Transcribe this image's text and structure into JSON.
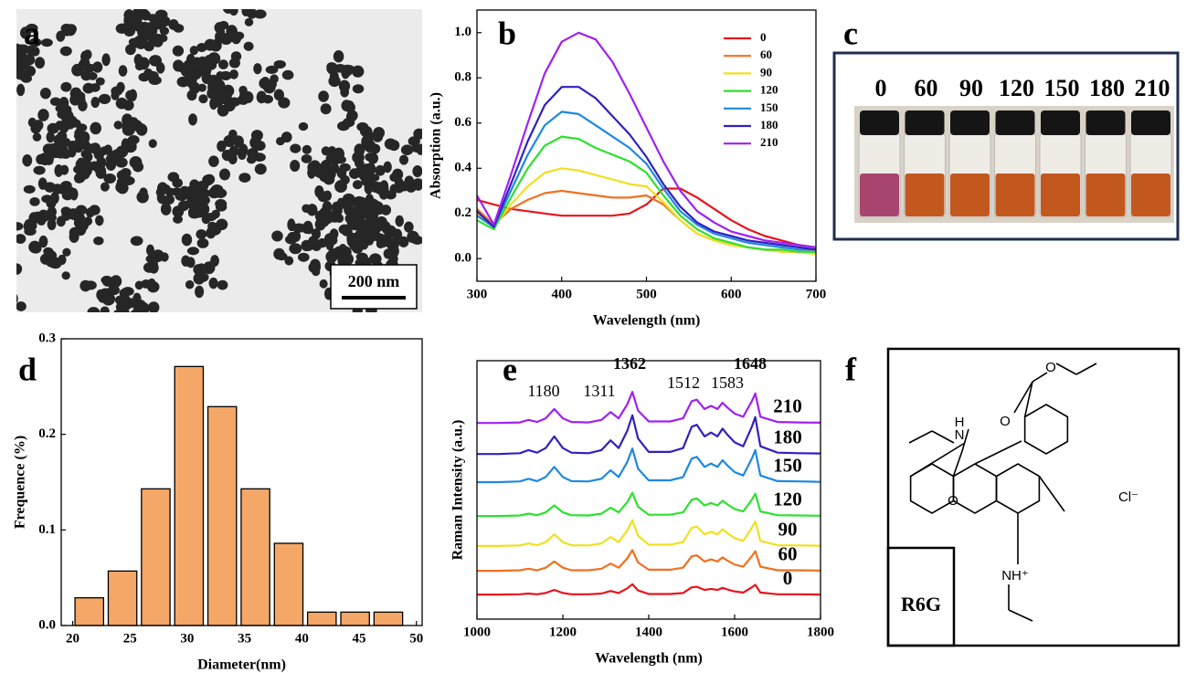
{
  "panel_labels": [
    "a",
    "b",
    "c",
    "d",
    "e",
    "f"
  ],
  "panel_a": {
    "scale_bar": "200 nm"
  },
  "panel_c": {
    "vial_labels": [
      "0",
      "60",
      "90",
      "120",
      "150",
      "180",
      "210"
    ]
  },
  "panel_f": {
    "atoms": [
      "H",
      "N",
      "O",
      "O",
      "O",
      "Cl⁻",
      "NH⁺"
    ],
    "compound": "R6G"
  },
  "chart_data": [
    {
      "type": "line",
      "xlabel": "Wavelength (nm)",
      "ylabel": "Absorption (a.u.)",
      "xlim": [
        300,
        700
      ],
      "ylim": [
        -0.1,
        1.1
      ],
      "xticks": [
        300,
        400,
        500,
        600,
        700
      ],
      "yticks": [
        {
          "value": 0,
          "label": "0.0"
        },
        0.2,
        0.4,
        0.6,
        0.8,
        {
          "value": 1,
          "label": "1.0"
        }
      ],
      "legend": "upper right",
      "x": [
        300,
        320,
        340,
        360,
        380,
        400,
        420,
        440,
        460,
        480,
        500,
        520,
        540,
        560,
        580,
        600,
        620,
        640,
        660,
        680,
        700
      ],
      "series": [
        {
          "name": "0",
          "color": "#e8141c",
          "values": [
            0.26,
            0.24,
            0.22,
            0.21,
            0.2,
            0.19,
            0.19,
            0.19,
            0.19,
            0.2,
            0.24,
            0.31,
            0.31,
            0.27,
            0.22,
            0.17,
            0.13,
            0.1,
            0.08,
            0.06,
            0.05
          ]
        },
        {
          "name": "60",
          "color": "#f07020",
          "values": [
            0.22,
            0.15,
            0.22,
            0.26,
            0.29,
            0.3,
            0.29,
            0.28,
            0.27,
            0.27,
            0.28,
            0.24,
            0.17,
            0.11,
            0.08,
            0.06,
            0.05,
            0.04,
            0.03,
            0.03,
            0.03
          ]
        },
        {
          "name": "90",
          "color": "#f0e020",
          "values": [
            0.2,
            0.14,
            0.24,
            0.32,
            0.38,
            0.4,
            0.39,
            0.37,
            0.35,
            0.33,
            0.32,
            0.25,
            0.17,
            0.11,
            0.08,
            0.06,
            0.05,
            0.04,
            0.03,
            0.03,
            0.02
          ]
        },
        {
          "name": "120",
          "color": "#2ee02e",
          "values": [
            0.17,
            0.13,
            0.27,
            0.4,
            0.5,
            0.54,
            0.53,
            0.49,
            0.46,
            0.43,
            0.38,
            0.28,
            0.19,
            0.13,
            0.09,
            0.07,
            0.05,
            0.04,
            0.04,
            0.03,
            0.03
          ]
        },
        {
          "name": "150",
          "color": "#1e88e0",
          "values": [
            0.19,
            0.14,
            0.3,
            0.46,
            0.59,
            0.65,
            0.64,
            0.59,
            0.54,
            0.49,
            0.42,
            0.31,
            0.21,
            0.15,
            0.11,
            0.09,
            0.07,
            0.06,
            0.05,
            0.04,
            0.04
          ]
        },
        {
          "name": "180",
          "color": "#3020c0",
          "values": [
            0.21,
            0.14,
            0.33,
            0.52,
            0.68,
            0.76,
            0.76,
            0.71,
            0.63,
            0.55,
            0.45,
            0.33,
            0.23,
            0.16,
            0.12,
            0.1,
            0.08,
            0.07,
            0.06,
            0.05,
            0.04
          ]
        },
        {
          "name": "210",
          "color": "#a020f0",
          "values": [
            0.28,
            0.15,
            0.37,
            0.6,
            0.82,
            0.96,
            1.0,
            0.97,
            0.87,
            0.73,
            0.58,
            0.43,
            0.3,
            0.21,
            0.16,
            0.12,
            0.1,
            0.08,
            0.07,
            0.06,
            0.05
          ]
        }
      ]
    },
    {
      "type": "histogram",
      "xlabel": "Diameter(nm)",
      "ylabel": "Frequence (%)",
      "xlim": [
        19,
        50.5
      ],
      "ylim": [
        0,
        0.3
      ],
      "xticks": [
        20,
        25,
        30,
        35,
        40,
        45,
        50
      ],
      "yticks": [
        {
          "value": 0,
          "label": "0.0"
        },
        0.1,
        0.2,
        0.3
      ],
      "color": "#f4a766",
      "bins": [
        20.0,
        22.9,
        25.8,
        28.7,
        31.6,
        34.5,
        37.4,
        40.3,
        43.2,
        46.1,
        49.0
      ],
      "values": [
        0.029,
        0.057,
        0.143,
        0.271,
        0.229,
        0.143,
        0.086,
        0.014,
        0.014,
        0.014
      ]
    },
    {
      "type": "line",
      "xlabel": "Wavelength (nm)",
      "ylabel": "Raman Intensity (a.u.)",
      "xlim": [
        1000,
        1800
      ],
      "ylim": [
        0,
        100
      ],
      "xticks": [
        1000,
        1200,
        1400,
        1600,
        1800
      ],
      "annotations": [
        "1180",
        "1311",
        "1362",
        "1512",
        "1583",
        "1648"
      ],
      "x": [
        1000,
        1050,
        1100,
        1120,
        1140,
        1160,
        1180,
        1200,
        1220,
        1260,
        1290,
        1311,
        1330,
        1350,
        1362,
        1375,
        1400,
        1450,
        1480,
        1500,
        1512,
        1530,
        1545,
        1560,
        1572,
        1583,
        1600,
        1620,
        1640,
        1648,
        1660,
        1700,
        1750,
        1800
      ],
      "series": [
        {
          "name": "0",
          "color": "#e8141c",
          "values": [
            9.5,
            9.5,
            9.6,
            9.9,
            9.6,
            10.1,
            11.3,
            10.1,
            9.6,
            9.6,
            9.9,
            10.9,
            10.1,
            11.9,
            13.5,
            11.1,
            9.7,
            9.7,
            10.1,
            12.3,
            12.5,
            11.3,
            11.7,
            11.3,
            12.1,
            11.5,
            10.7,
            10.3,
            12.3,
            13.3,
            10.3,
            9.6,
            9.6,
            9.5
          ]
        },
        {
          "name": "60",
          "color": "#f07020",
          "values": [
            18.7,
            18.7,
            18.9,
            19.5,
            18.9,
            19.9,
            22.3,
            19.9,
            18.9,
            18.9,
            19.5,
            21.5,
            19.9,
            23.5,
            26.7,
            21.9,
            19.1,
            19.1,
            19.9,
            24.3,
            24.7,
            22.3,
            23.1,
            22.3,
            23.9,
            22.7,
            21.1,
            20.3,
            24.3,
            26.3,
            20.3,
            18.9,
            18.9,
            18.8
          ]
        },
        {
          "name": "90",
          "color": "#f0e020",
          "values": [
            28.3,
            28.3,
            28.5,
            29.3,
            28.6,
            29.8,
            32.8,
            29.8,
            28.6,
            28.5,
            29.3,
            31.8,
            29.8,
            34.3,
            38.3,
            32.3,
            28.8,
            28.8,
            29.8,
            35.3,
            35.8,
            32.8,
            33.8,
            32.8,
            34.8,
            33.3,
            31.3,
            30.3,
            35.3,
            37.8,
            30.3,
            28.6,
            28.5,
            28.4
          ]
        },
        {
          "name": "120",
          "color": "#2ee02e",
          "values": [
            39.9,
            39.9,
            40.1,
            40.8,
            40.2,
            41.3,
            44,
            41.3,
            40.2,
            40.1,
            40.8,
            43.1,
            41.3,
            45.3,
            48.9,
            43.5,
            40.4,
            40.4,
            41.3,
            46.2,
            46.7,
            44,
            44.9,
            44,
            45.8,
            44.4,
            42.6,
            41.7,
            46.2,
            48.5,
            41.7,
            40.2,
            40.1,
            40
          ]
        },
        {
          "name": "150",
          "color": "#1e88e0",
          "values": [
            53,
            53,
            53.3,
            54.3,
            53.4,
            55,
            58.9,
            55,
            53.4,
            53.3,
            54.3,
            57.6,
            55,
            60.8,
            66,
            58.2,
            53.7,
            53.7,
            55,
            62.1,
            62.8,
            58.9,
            60.2,
            58.9,
            61.5,
            59.5,
            56.9,
            55.6,
            62.1,
            65.4,
            55.6,
            53.4,
            53.3,
            53.1
          ]
        },
        {
          "name": "180",
          "color": "#3020c0",
          "values": [
            63.9,
            63.9,
            64.2,
            65.4,
            64.4,
            66.2,
            70.7,
            66.2,
            64.4,
            64.2,
            65.4,
            69.2,
            66.2,
            72.9,
            78.9,
            69.9,
            64.7,
            64.7,
            66.2,
            74.4,
            75.2,
            70.7,
            72.2,
            70.7,
            73.7,
            71.4,
            68.4,
            66.9,
            74.4,
            78.2,
            66.9,
            64.4,
            64.2,
            64.1
          ]
        },
        {
          "name": "210",
          "color": "#a020f0",
          "values": [
            75.9,
            75.9,
            76.1,
            77.1,
            76.3,
            77.7,
            81.3,
            77.7,
            76.3,
            76.1,
            77.1,
            80.1,
            77.7,
            83.1,
            87.9,
            80.7,
            76.5,
            76.5,
            77.7,
            84.3,
            84.9,
            81.3,
            82.5,
            81.3,
            83.7,
            81.9,
            79.5,
            78.3,
            84.3,
            87.3,
            78.3,
            76.3,
            76.1,
            76
          ]
        }
      ]
    }
  ]
}
